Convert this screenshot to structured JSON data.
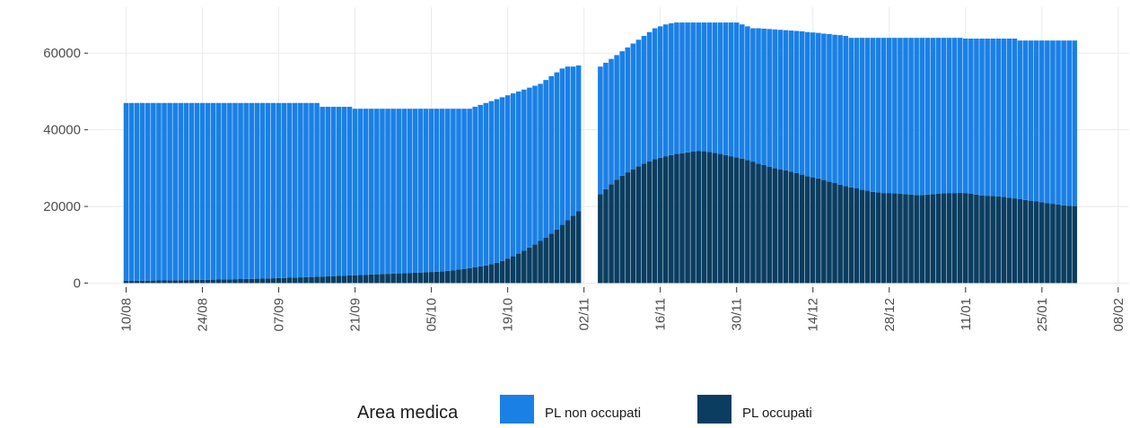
{
  "chart_data": {
    "type": "stacked_bar",
    "x": [
      "10/08",
      "11/08",
      "12/08",
      "13/08",
      "14/08",
      "15/08",
      "16/08",
      "17/08",
      "18/08",
      "19/08",
      "20/08",
      "21/08",
      "22/08",
      "23/08",
      "24/08",
      "25/08",
      "26/08",
      "27/08",
      "28/08",
      "29/08",
      "30/08",
      "31/08",
      "01/09",
      "02/09",
      "03/09",
      "04/09",
      "05/09",
      "06/09",
      "07/09",
      "08/09",
      "09/09",
      "10/09",
      "11/09",
      "12/09",
      "13/09",
      "14/09",
      "15/09",
      "16/09",
      "17/09",
      "18/09",
      "19/09",
      "20/09",
      "21/09",
      "22/09",
      "23/09",
      "24/09",
      "25/09",
      "26/09",
      "27/09",
      "28/09",
      "29/09",
      "30/09",
      "01/10",
      "02/10",
      "03/10",
      "04/10",
      "05/10",
      "06/10",
      "07/10",
      "08/10",
      "09/10",
      "10/10",
      "11/10",
      "12/10",
      "13/10",
      "14/10",
      "15/10",
      "16/10",
      "17/10",
      "18/10",
      "19/10",
      "20/10",
      "21/10",
      "22/10",
      "23/10",
      "24/10",
      "25/10",
      "26/10",
      "27/10",
      "28/10",
      "29/10",
      "30/10",
      "31/10",
      "01/11",
      "02/11",
      "03/11",
      "04/11",
      "05/11",
      "06/11",
      "07/11",
      "08/11",
      "09/11",
      "10/11",
      "11/11",
      "12/11",
      "13/11",
      "14/11",
      "15/11",
      "16/11",
      "17/11",
      "18/11",
      "19/11",
      "20/11",
      "21/11",
      "22/11",
      "23/11",
      "24/11",
      "25/11",
      "26/11",
      "27/11",
      "28/11",
      "29/11",
      "30/11",
      "01/12",
      "02/12",
      "03/12",
      "04/12",
      "05/12",
      "06/12",
      "07/12",
      "08/12",
      "09/12",
      "10/12",
      "11/12",
      "12/12",
      "13/12",
      "14/12",
      "15/12",
      "16/12",
      "17/12",
      "18/12",
      "19/12",
      "20/12",
      "21/12",
      "22/12",
      "23/12",
      "24/12",
      "25/12",
      "26/12",
      "27/12",
      "28/12",
      "29/12",
      "30/12",
      "31/12",
      "01/01",
      "02/01",
      "03/01",
      "04/01",
      "05/01",
      "06/01",
      "07/01",
      "08/01",
      "09/01",
      "10/01",
      "11/01",
      "12/01",
      "13/01",
      "14/01",
      "15/01",
      "16/01",
      "17/01",
      "18/01",
      "19/01",
      "20/01",
      "21/01",
      "22/01",
      "23/01",
      "24/01",
      "25/01",
      "26/01",
      "27/01",
      "28/01",
      "29/01",
      "30/01",
      "31/01"
    ],
    "series": [
      {
        "name": "PL non occupati",
        "color": "#1a80e6",
        "values": [
          46400,
          46400,
          46380,
          46360,
          46350,
          46330,
          46310,
          46300,
          46280,
          46260,
          46240,
          46220,
          46200,
          46180,
          46150,
          46120,
          46100,
          46070,
          46040,
          46010,
          45980,
          45950,
          45920,
          45890,
          45860,
          45820,
          45780,
          45740,
          45700,
          45650,
          45600,
          45550,
          45500,
          45450,
          45400,
          45350,
          44300,
          44240,
          44180,
          44120,
          44060,
          44000,
          43440,
          43380,
          43320,
          43260,
          43200,
          43140,
          43080,
          43020,
          42960,
          42900,
          42850,
          42800,
          42740,
          42680,
          42600,
          42520,
          42420,
          42300,
          42150,
          42000,
          41800,
          41600,
          41900,
          42150,
          42400,
          42600,
          42700,
          42700,
          42600,
          42500,
          42300,
          42000,
          41700,
          41400,
          41000,
          41100,
          41100,
          41000,
          40800,
          40100,
          38900,
          38000,
          null,
          null,
          null,
          33300,
          33000,
          32700,
          32500,
          32500,
          32600,
          32800,
          33000,
          33300,
          33700,
          34200,
          34300,
          34400,
          34400,
          34300,
          34100,
          33900,
          33700,
          33500,
          33600,
          33800,
          34000,
          34300,
          34600,
          34900,
          35200,
          35000,
          34900,
          34800,
          35300,
          35600,
          35900,
          36200,
          36400,
          36600,
          36800,
          37100,
          37400,
          37600,
          37800,
          38000,
          38200,
          38500,
          38700,
          39000,
          39200,
          39000,
          39300,
          39600,
          39900,
          40200,
          40300,
          40500,
          40500,
          40600,
          40700,
          40800,
          40900,
          41000,
          41000,
          40900,
          40800,
          40700,
          40600,
          40500,
          40500,
          40400,
          40300,
          40500,
          40700,
          40900,
          41000,
          41100,
          41200,
          41300,
          41500,
          41700,
          41400,
          41600,
          41800,
          42000,
          42200,
          42400,
          42600,
          42800,
          43000,
          43100,
          43200
        ]
      },
      {
        "name": "PL occupati",
        "color": "#0a3d60",
        "values": [
          600,
          600,
          620,
          640,
          650,
          670,
          690,
          700,
          720,
          740,
          760,
          780,
          800,
          820,
          850,
          880,
          900,
          930,
          960,
          990,
          1020,
          1050,
          1080,
          1110,
          1140,
          1180,
          1220,
          1260,
          1300,
          1350,
          1400,
          1450,
          1500,
          1550,
          1600,
          1650,
          1700,
          1760,
          1820,
          1880,
          1940,
          2000,
          2060,
          2120,
          2180,
          2240,
          2300,
          2360,
          2420,
          2480,
          2540,
          2600,
          2650,
          2700,
          2760,
          2820,
          2900,
          2980,
          3080,
          3200,
          3350,
          3500,
          3700,
          3900,
          4100,
          4350,
          4600,
          4900,
          5300,
          5800,
          6400,
          7000,
          7700,
          8500,
          9300,
          10100,
          11000,
          11900,
          12900,
          14000,
          15200,
          16400,
          17600,
          18800,
          null,
          null,
          null,
          23200,
          24500,
          25800,
          27000,
          28000,
          28900,
          29700,
          30500,
          31200,
          31800,
          32300,
          32700,
          33100,
          33400,
          33700,
          33900,
          34100,
          34300,
          34500,
          34400,
          34200,
          34000,
          33700,
          33400,
          33100,
          32800,
          32500,
          32100,
          31700,
          31200,
          30800,
          30400,
          30000,
          29700,
          29400,
          29100,
          28700,
          28300,
          27900,
          27600,
          27300,
          26900,
          26500,
          26100,
          25700,
          25300,
          25000,
          24700,
          24400,
          24100,
          23800,
          23700,
          23500,
          23500,
          23400,
          23300,
          23200,
          23100,
          23000,
          23000,
          23100,
          23200,
          23300,
          23400,
          23500,
          23500,
          23600,
          23500,
          23300,
          23100,
          22900,
          22800,
          22700,
          22600,
          22500,
          22300,
          22100,
          21900,
          21700,
          21500,
          21300,
          21100,
          20900,
          20700,
          20500,
          20300,
          20200,
          20100
        ]
      }
    ],
    "xlim": [
      "03/08",
      "10/02"
    ],
    "xticks": [
      "10/08",
      "24/08",
      "07/09",
      "21/09",
      "05/10",
      "19/10",
      "02/11",
      "16/11",
      "30/11",
      "14/12",
      "28/12",
      "11/01",
      "25/01",
      "08/02"
    ],
    "ylim": [
      -3400,
      72000
    ],
    "yticks": [
      0,
      20000,
      40000,
      60000
    ],
    "grid": true,
    "legend_title": "Area medica",
    "legend": "bottom"
  }
}
